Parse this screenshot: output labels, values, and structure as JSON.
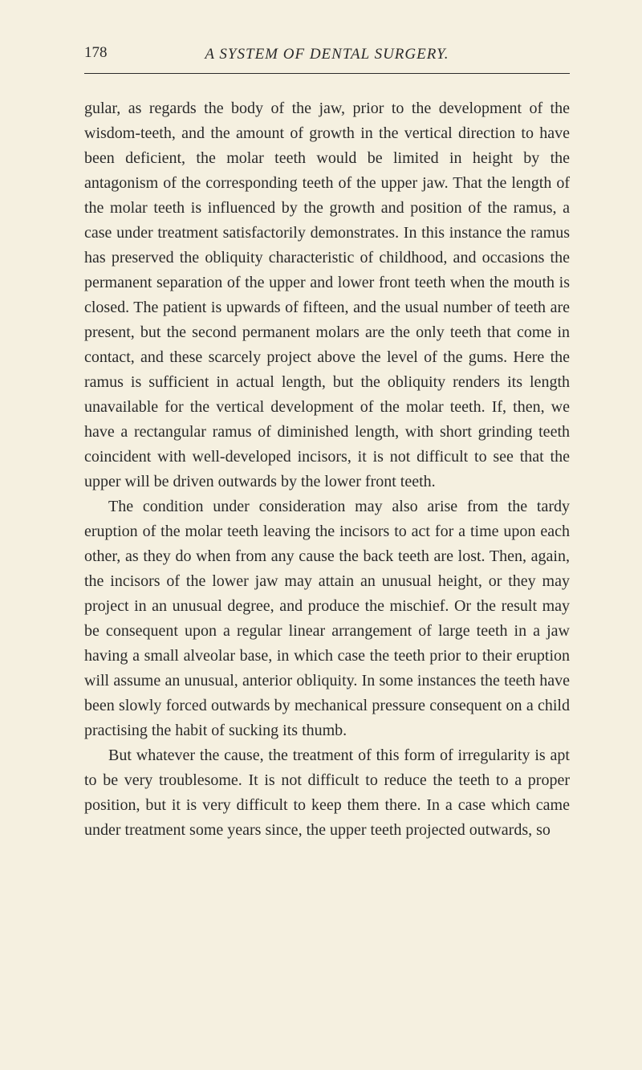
{
  "page": {
    "number": "178",
    "running_title": "A SYSTEM OF DENTAL SURGERY."
  },
  "paragraphs": [
    "gular, as regards the body of the jaw, prior to the develop­ment of the wisdom-teeth, and the amount of growth in the vertical direction to have been deficient, the molar teeth would be limited in height by the antagonism of the corre­sponding teeth of the upper jaw. That the length of the molar teeth is influenced by the growth and position of the ramus, a case under treatment satisfactorily demonstrates. In this instance the ramus has preserved the obliquity characteristic of childhood, and occasions the permanent separation of the upper and lower front teeth when the mouth is closed. The patient is upwards of fifteen, and the usual number of teeth are present, but the second per­manent molars are the only teeth that come in contact, and these scarcely project above the level of the gums. Here the ramus is sufficient in actual length, but the obliquity renders its length unavailable for the vertical development of the molar teeth. If, then, we have a rectangular ramus of diminished length, with short grinding teeth coincident with well-developed incisors, it is not difficult to see that the upper will be driven outwards by the lower front teeth.",
    "The condition under consideration may also arise from the tardy eruption of the molar teeth leaving the incisors to act for a time upon each other, as they do when from any cause the back teeth are lost. Then, again, the incisors of the lower jaw may attain an unusual height, or they may project in an unusual degree, and produce the mischief. Or the result may be consequent upon a regular linear arrangement of large teeth in a jaw having a small alveolar base, in which case the teeth prior to their eruption will assume an unusual, anterior obliquity. In some instances the teeth have been slowly forced outwards by mechanical pressure consequent on a child practising the habit of sucking its thumb.",
    "But whatever the cause, the treatment of this form of irregularity is apt to be very troublesome. It is not difficult to reduce the teeth to a proper position, but it is very difficult to keep them there. In a case which came under treatment some years since, the upper teeth projected outwards, so"
  ],
  "colors": {
    "background": "#f5f0e0",
    "text": "#2a2a2a",
    "rule": "#2a2a2a"
  },
  "typography": {
    "body_fontsize": 20,
    "header_fontsize": 19,
    "line_height": 1.55,
    "font_family": "Times New Roman"
  }
}
